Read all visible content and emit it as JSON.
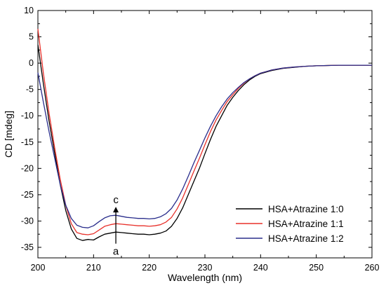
{
  "chart_data": {
    "type": "line",
    "xlabel": "Wavelength (nm)",
    "ylabel": "CD [mdeg]",
    "xlim": [
      200,
      260
    ],
    "ylim": [
      -37,
      10
    ],
    "xticks": [
      200,
      210,
      220,
      230,
      240,
      250,
      260
    ],
    "yticks": [
      -35,
      -30,
      -25,
      -20,
      -15,
      -10,
      -5,
      0,
      5,
      10
    ],
    "grid": false,
    "legend_position": "bottom-right",
    "series": [
      {
        "name": "HSA+Atrazine 1:0",
        "color": "#000000",
        "points": [
          [
            200,
            3.5
          ],
          [
            201,
            -4
          ],
          [
            202,
            -11
          ],
          [
            203,
            -17
          ],
          [
            204,
            -23
          ],
          [
            205,
            -28
          ],
          [
            206,
            -31.5
          ],
          [
            207,
            -33.3
          ],
          [
            208,
            -33.7
          ],
          [
            209,
            -33.5
          ],
          [
            210,
            -33.6
          ],
          [
            211,
            -33
          ],
          [
            212,
            -32.5
          ],
          [
            213,
            -32.3
          ],
          [
            214,
            -32.1
          ],
          [
            215,
            -32.2
          ],
          [
            216,
            -32.3
          ],
          [
            217,
            -32.4
          ],
          [
            218,
            -32.5
          ],
          [
            219,
            -32.5
          ],
          [
            220,
            -32.6
          ],
          [
            221,
            -32.5
          ],
          [
            222,
            -32.3
          ],
          [
            223,
            -31.9
          ],
          [
            224,
            -31
          ],
          [
            225,
            -29.5
          ],
          [
            226,
            -27.5
          ],
          [
            227,
            -25
          ],
          [
            228,
            -22.5
          ],
          [
            229,
            -20
          ],
          [
            230,
            -17.2
          ],
          [
            231,
            -14.5
          ],
          [
            232,
            -12
          ],
          [
            233,
            -10
          ],
          [
            234,
            -8
          ],
          [
            235,
            -6.5
          ],
          [
            236,
            -5.2
          ],
          [
            237,
            -4.1
          ],
          [
            238,
            -3.2
          ],
          [
            239,
            -2.5
          ],
          [
            240,
            -2
          ],
          [
            242,
            -1.4
          ],
          [
            244,
            -1
          ],
          [
            246,
            -0.8
          ],
          [
            248,
            -0.6
          ],
          [
            250,
            -0.5
          ],
          [
            252,
            -0.45
          ],
          [
            254,
            -0.4
          ],
          [
            256,
            -0.4
          ],
          [
            258,
            -0.4
          ],
          [
            260,
            -0.4
          ]
        ]
      },
      {
        "name": "HSA+Atrazine 1:1",
        "color": "#e8302a",
        "points": [
          [
            200,
            6.5
          ],
          [
            201,
            -2
          ],
          [
            202,
            -9.5
          ],
          [
            203,
            -16
          ],
          [
            204,
            -22
          ],
          [
            205,
            -27
          ],
          [
            206,
            -30.5
          ],
          [
            207,
            -32.2
          ],
          [
            208,
            -32.5
          ],
          [
            209,
            -32.6
          ],
          [
            210,
            -32.4
          ],
          [
            211,
            -31.7
          ],
          [
            212,
            -31
          ],
          [
            213,
            -30.7
          ],
          [
            214,
            -30.5
          ],
          [
            215,
            -30.6
          ],
          [
            216,
            -30.7
          ],
          [
            217,
            -30.8
          ],
          [
            218,
            -30.9
          ],
          [
            219,
            -30.9
          ],
          [
            220,
            -31
          ],
          [
            221,
            -30.9
          ],
          [
            222,
            -30.7
          ],
          [
            223,
            -30.2
          ],
          [
            224,
            -29.3
          ],
          [
            225,
            -27.7
          ],
          [
            226,
            -25.6
          ],
          [
            227,
            -23.1
          ],
          [
            228,
            -20.6
          ],
          [
            229,
            -18.1
          ],
          [
            230,
            -15.5
          ],
          [
            231,
            -13
          ],
          [
            232,
            -10.8
          ],
          [
            233,
            -9
          ],
          [
            234,
            -7.3
          ],
          [
            235,
            -6
          ],
          [
            236,
            -4.8
          ],
          [
            237,
            -3.8
          ],
          [
            238,
            -3
          ],
          [
            239,
            -2.4
          ],
          [
            240,
            -1.9
          ],
          [
            242,
            -1.3
          ],
          [
            244,
            -0.95
          ],
          [
            246,
            -0.75
          ],
          [
            248,
            -0.6
          ],
          [
            250,
            -0.5
          ],
          [
            252,
            -0.45
          ],
          [
            254,
            -0.4
          ],
          [
            256,
            -0.4
          ],
          [
            258,
            -0.4
          ],
          [
            260,
            -0.4
          ]
        ]
      },
      {
        "name": "HSA+Atrazine 1:2",
        "color": "#2a2e8c",
        "points": [
          [
            200,
            -1.8
          ],
          [
            201,
            -7.5
          ],
          [
            202,
            -13
          ],
          [
            203,
            -18
          ],
          [
            204,
            -23
          ],
          [
            205,
            -27
          ],
          [
            206,
            -29.5
          ],
          [
            207,
            -30.8
          ],
          [
            208,
            -31.2
          ],
          [
            209,
            -31.3
          ],
          [
            210,
            -30.9
          ],
          [
            211,
            -30.1
          ],
          [
            212,
            -29.4
          ],
          [
            213,
            -29
          ],
          [
            214,
            -28.9
          ],
          [
            215,
            -29.1
          ],
          [
            216,
            -29.3
          ],
          [
            217,
            -29.4
          ],
          [
            218,
            -29.5
          ],
          [
            219,
            -29.5
          ],
          [
            220,
            -29.6
          ],
          [
            221,
            -29.5
          ],
          [
            222,
            -29.2
          ],
          [
            223,
            -28.6
          ],
          [
            224,
            -27.6
          ],
          [
            225,
            -26
          ],
          [
            226,
            -23.9
          ],
          [
            227,
            -21.5
          ],
          [
            228,
            -19
          ],
          [
            229,
            -16.6
          ],
          [
            230,
            -14.2
          ],
          [
            231,
            -12
          ],
          [
            232,
            -10
          ],
          [
            233,
            -8.3
          ],
          [
            234,
            -6.8
          ],
          [
            235,
            -5.6
          ],
          [
            236,
            -4.6
          ],
          [
            237,
            -3.7
          ],
          [
            238,
            -3
          ],
          [
            239,
            -2.4
          ],
          [
            240,
            -1.9
          ],
          [
            242,
            -1.3
          ],
          [
            244,
            -0.95
          ],
          [
            246,
            -0.75
          ],
          [
            248,
            -0.6
          ],
          [
            250,
            -0.5
          ],
          [
            252,
            -0.45
          ],
          [
            254,
            -0.4
          ],
          [
            256,
            -0.4
          ],
          [
            258,
            -0.4
          ],
          [
            260,
            -0.4
          ]
        ]
      }
    ],
    "annotations": {
      "arrow_x": 214,
      "arrow_from_y": -34.3,
      "arrow_to_y": -27.3,
      "label_top": "c",
      "label_bottom": "a"
    }
  }
}
